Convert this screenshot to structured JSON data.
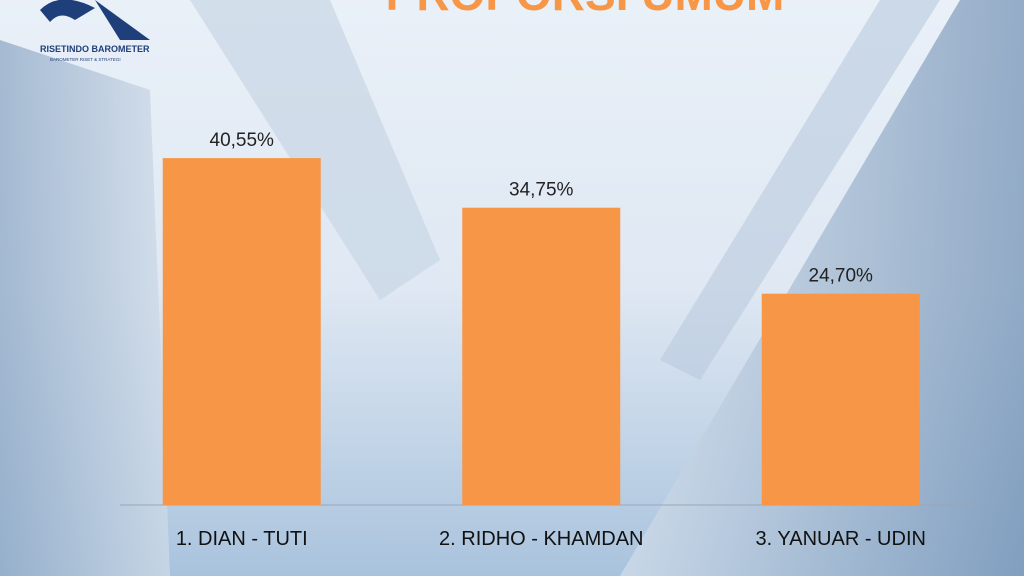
{
  "chart_data": {
    "type": "bar",
    "title": "PROPORSI UMUM",
    "logo": {
      "name": "RISETINDO BAROMETER",
      "tagline": "BAROMETER RISET & STRATEGI"
    },
    "categories": [
      "1. DIAN - TUTI",
      "2. RIDHO - KHAMDAN",
      "3. YANUAR - UDIN"
    ],
    "values": [
      40.55,
      34.75,
      24.7
    ],
    "value_labels": [
      "40,55%",
      "34,75%",
      "24,70%"
    ],
    "color": "#f79646"
  }
}
